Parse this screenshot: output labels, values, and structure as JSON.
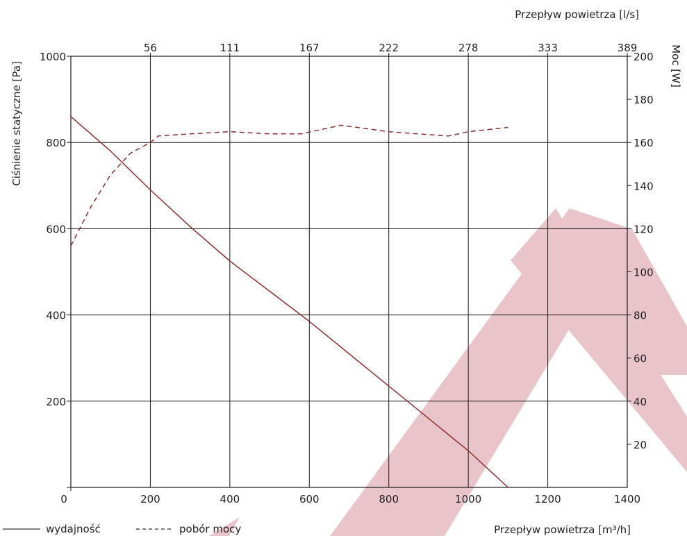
{
  "chart_data": {
    "type": "line",
    "xlabel": "Przepływ powietrza [m³/h]",
    "x2label": "Przepływ powietrza [l/s]",
    "ylabel": "Ciśnienie statyczne [Pa]",
    "y2label": "Moc [W]",
    "xlim": [
      0,
      1400
    ],
    "ylim": [
      0,
      1000
    ],
    "y2lim": [
      0,
      200
    ],
    "x_ticks": [
      "0",
      "200",
      "400",
      "600",
      "800",
      "1000",
      "1200",
      "1400"
    ],
    "x2_ticks": [
      "56",
      "111",
      "167",
      "222",
      "278",
      "333",
      "389"
    ],
    "y_ticks": [
      "200",
      "400",
      "600",
      "800",
      "1000"
    ],
    "y2_ticks": [
      "20",
      "40",
      "60",
      "80",
      "100",
      "120",
      "140",
      "160",
      "180",
      "200"
    ],
    "grid": true,
    "legend_position": "bottom-left",
    "series": [
      {
        "name": "wydajność",
        "axis": "left",
        "style": "solid",
        "color": "#8b2e2e",
        "x": [
          0,
          100,
          200,
          300,
          400,
          500,
          600,
          700,
          800,
          900,
          1000,
          1100
        ],
        "y": [
          860,
          780,
          690,
          605,
          525,
          455,
          385,
          310,
          235,
          160,
          85,
          0
        ]
      },
      {
        "name": "pobór mocy",
        "axis": "right",
        "style": "dashed",
        "color": "#8b2e2e",
        "x": [
          0,
          50,
          100,
          150,
          200,
          220,
          300,
          400,
          500,
          580,
          680,
          800,
          950,
          1000,
          1100
        ],
        "y": [
          112,
          130,
          145,
          155,
          160,
          163,
          164,
          165,
          164,
          164,
          168,
          165,
          163,
          165,
          167
        ]
      }
    ],
    "watermark_color": "#e9c4cb"
  }
}
